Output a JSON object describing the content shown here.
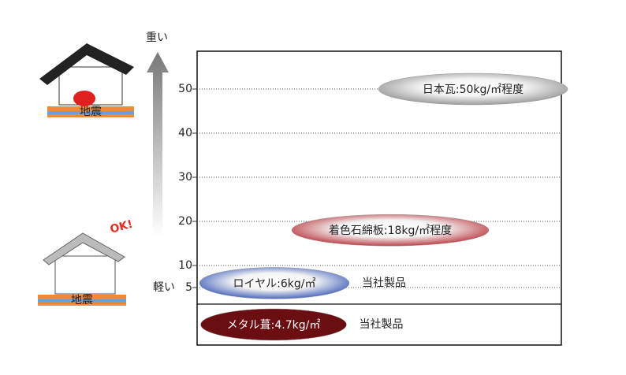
{
  "chart_data": [
    {
      "type": "ellipse-scale",
      "top_label": "重い",
      "bottom_label": "軽い",
      "ylim": [
        1.25,
        58.57
      ],
      "yticks": [
        5,
        10,
        20,
        30,
        40,
        50
      ],
      "grid": true,
      "items": [
        {
          "label": "日本瓦:50kg/㎡程度",
          "value": 50,
          "color": "#8c8c8c"
        },
        {
          "label": "着色石綿板:18kg/㎡程度",
          "value": 18,
          "color": "#b3232b"
        },
        {
          "label": "ロイヤル:6kg/㎡",
          "value": 6,
          "color": "#2d4fb3",
          "note": "当社製品"
        }
      ]
    },
    {
      "type": "ellipse-band",
      "items": [
        {
          "label": "メタル葺:4.7kg/㎡",
          "value": 4.7,
          "color": "#6a0e12",
          "note": "当社製品"
        }
      ]
    }
  ],
  "illustrations": {
    "heavy_house_sign": "地震",
    "light_house_sign": "地震",
    "light_house_shout": "OK!"
  }
}
